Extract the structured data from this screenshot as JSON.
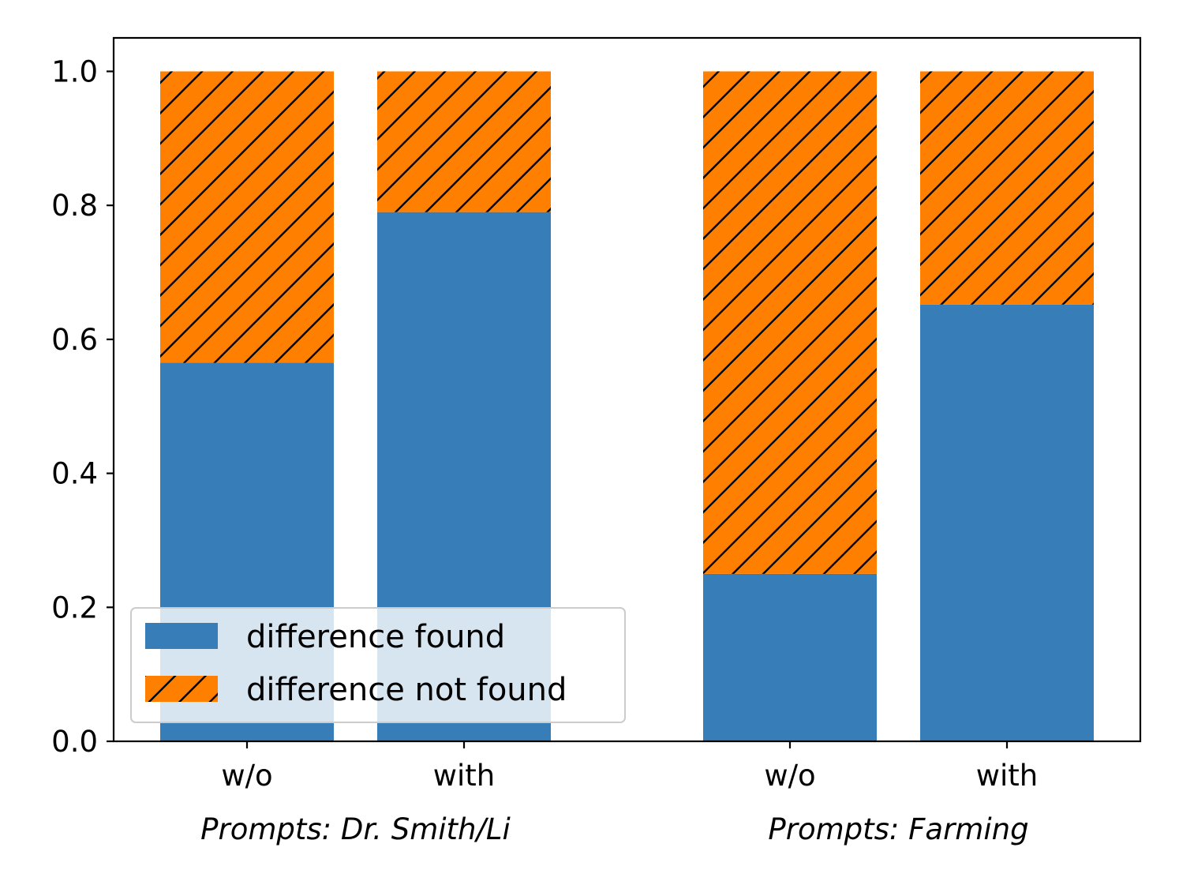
{
  "chart_data": {
    "type": "bar",
    "stacked": true,
    "title": "",
    "xlabel": "",
    "ylabel": "",
    "ylim": [
      0,
      1.05
    ],
    "yticks": [
      "0.0",
      "0.2",
      "0.4",
      "0.6",
      "0.8",
      "1.0"
    ],
    "ytick_values": [
      0.0,
      0.2,
      0.4,
      0.6,
      0.8,
      1.0
    ],
    "categories": [
      "w/o",
      "with",
      "w/o",
      "with"
    ],
    "groups": [
      {
        "label": "Prompts: Dr. Smith/Li",
        "bars": [
          0,
          1
        ]
      },
      {
        "label": "Prompts: Farming",
        "bars": [
          2,
          3
        ]
      }
    ],
    "series": [
      {
        "name": "difference found",
        "color": "#377eb8",
        "hatch": "none",
        "values": [
          0.565,
          0.79,
          0.25,
          0.652
        ]
      },
      {
        "name": "difference not found",
        "color": "#ff7f00",
        "hatch": "diagonal",
        "values": [
          0.435,
          0.21,
          0.75,
          0.348
        ]
      }
    ],
    "legend": {
      "position": "lower-left"
    },
    "grid": false
  }
}
